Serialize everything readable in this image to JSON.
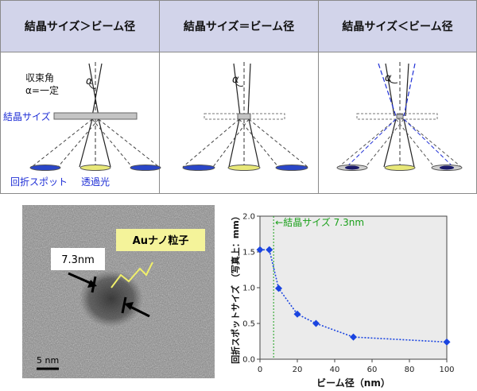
{
  "columns": [
    {
      "title": "結晶サイズ＞ビーム径"
    },
    {
      "title": "結晶サイズ＝ビーム径"
    },
    {
      "title": "結晶サイズ＜ビーム径"
    }
  ],
  "diagram_labels": {
    "convergence_angle": "収束角",
    "alpha_constant": "α=一定",
    "alpha": "α",
    "crystal_size": "結晶サイズ",
    "diffraction_spot": "回折スポット",
    "transmitted_light": "透過光"
  },
  "micrograph": {
    "size_label": "7.3nm",
    "particle_label": "Auナノ粒子",
    "scale_bar": "5 nm"
  },
  "colors": {
    "header_bg": "#d2d4ea",
    "blue_label": "#1f2fd6",
    "spot_blue": "#2a46c8",
    "transmitted_yellow": "#e8e878",
    "chart_marker": "#1a44e0",
    "annotation_green": "#1aa01a"
  },
  "chart_data": {
    "type": "line",
    "xlabel": "ビーム径（nm）",
    "ylabel": "回折スポットサイズ （写真上：mm）",
    "xlim": [
      0,
      100
    ],
    "ylim": [
      0,
      2.0
    ],
    "xticks": [
      0,
      20,
      40,
      60,
      80,
      100
    ],
    "yticks": [
      0.0,
      0.5,
      1.0,
      1.5,
      2.0
    ],
    "grid": false,
    "marker": "diamond",
    "line_style": "dotted",
    "annotation": {
      "text": "結晶サイズ 7.3nm",
      "x": 7.3
    },
    "series": [
      {
        "x": [
          0,
          5,
          10,
          20,
          30,
          50,
          100
        ],
        "y": [
          1.53,
          1.53,
          0.99,
          0.63,
          0.5,
          0.31,
          0.24
        ]
      }
    ]
  }
}
